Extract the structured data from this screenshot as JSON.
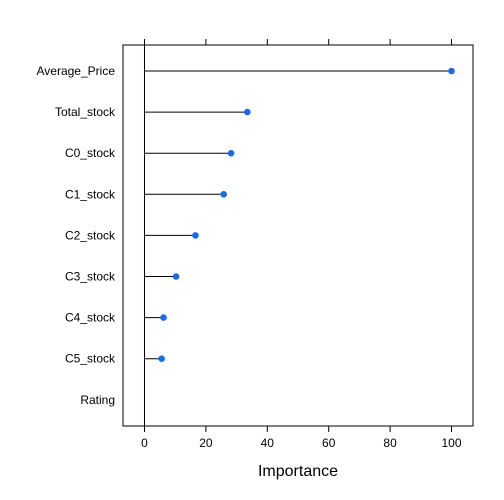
{
  "chart_data": {
    "type": "lollipop",
    "orientation": "horizontal",
    "xlabel": "Importance",
    "xlim": [
      -7,
      107
    ],
    "xticks": [
      0,
      20,
      40,
      60,
      80,
      100
    ],
    "xtick_labels": [
      "0",
      "20",
      "40",
      "60",
      "80",
      "100"
    ],
    "baseline": 0,
    "categories": [
      "Average_Price",
      "Total_stock",
      "C0_stock",
      "C1_stock",
      "C2_stock",
      "C3_stock",
      "C4_stock",
      "C5_stock",
      "Rating"
    ],
    "values": [
      100,
      33.5,
      28.2,
      25.8,
      16.6,
      10.3,
      6.2,
      5.6,
      0
    ],
    "point_color": "#1A6BE8",
    "line_color": "#000000",
    "grid": false
  }
}
